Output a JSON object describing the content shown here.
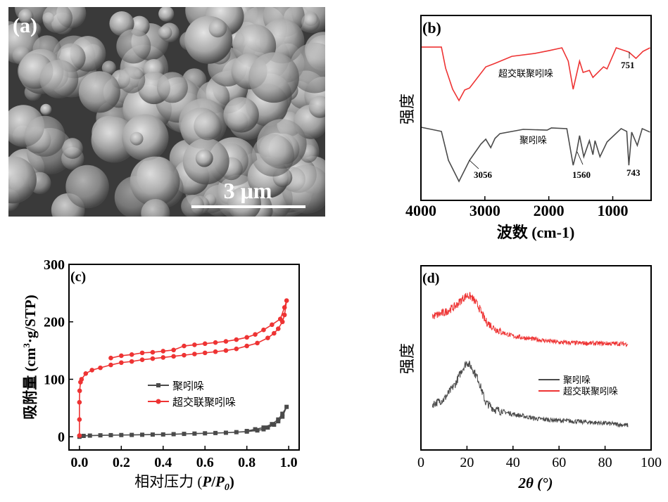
{
  "panel_a": {
    "label": "(a)",
    "scale_bar": "3 μm",
    "image": "SEM micrograph of aggregated spherical particles"
  },
  "chart_data": [
    {
      "panel": "(b)",
      "type": "line",
      "xlabel": "波数 (cm-1)",
      "xlabel_main": "波数 (cm",
      "xlabel_sup": "-1",
      "xlabel_end": ")",
      "ylabel": "强度",
      "xlim": [
        4000,
        400
      ],
      "ylim": [
        0,
        100
      ],
      "xticks": [
        4000,
        3000,
        2000,
        1000
      ],
      "grid": false,
      "series": [
        {
          "name": "超交联聚吲哚",
          "color": "#ee3333",
          "x": [
            3990,
            3680,
            3614,
            3504,
            3405,
            3316,
            3239,
            2986,
            2842,
            2578,
            2214,
            1993,
            1795,
            1696,
            1619,
            1519,
            1464,
            1365,
            1310,
            1144,
            1089,
            946,
            748,
            637,
            527,
            417
          ],
          "y": [
            82.9,
            82.9,
            71.5,
            60.1,
            54,
            59.7,
            60.8,
            72.2,
            74.1,
            77.9,
            79.5,
            81,
            82.5,
            75.3,
            60.1,
            75.3,
            69.2,
            70.3,
            66.5,
            72.2,
            71.1,
            82.5,
            80.2,
            76.8,
            80.6,
            82.5
          ]
        },
        {
          "name": "聚吲哚",
          "color": "#4a4a4a",
          "x": [
            3990,
            3680,
            3570,
            3405,
            3239,
            3063,
            2986,
            2908,
            2842,
            2765,
            2401,
            2026,
            1960,
            1718,
            1619,
            1563,
            1519,
            1453,
            1365,
            1310,
            1277,
            1200,
            1089,
            869,
            781,
            748,
            704,
            616,
            539,
            417
          ],
          "y": [
            39.5,
            37.3,
            21.7,
            10.3,
            21.7,
            30.4,
            33.1,
            28.5,
            33.5,
            36.1,
            38.4,
            38,
            39.2,
            38.8,
            19,
            26.6,
            35,
            23.6,
            32.3,
            24.7,
            32.3,
            23.6,
            31.6,
            38.8,
            37.3,
            19,
            36.9,
            29.7,
            38.8,
            36.9
          ]
        }
      ],
      "annotations": [
        "3056",
        "1560",
        "743",
        "751"
      ]
    },
    {
      "panel": "(c)",
      "type": "line",
      "xlabel_main": "相对压力 (",
      "xlabel_p": "P",
      "xlabel_slash": "/",
      "xlabel_p0": "P",
      "xlabel_sub": "0",
      "xlabel_end": ")",
      "xlabel": "相对压力 (P/P0)",
      "ylabel": "吸附量 (cm3·g/STP)",
      "ylabel_main": "吸附量 (cm",
      "ylabel_sup": "3",
      "ylabel_end": "·g/STP)",
      "xlim": [
        -0.05,
        1.05
      ],
      "ylim": [
        -23,
        300
      ],
      "xticks": [
        "0.0",
        "0.2",
        "0.4",
        "0.6",
        "0.8",
        "1.0"
      ],
      "yticks": [
        "0",
        "100",
        "200",
        "300"
      ],
      "legend": "center-right",
      "grid": false,
      "series": [
        {
          "name": "聚吲哚",
          "color": "#4a4a4a",
          "marker": "square",
          "x": [
            0,
            0.02,
            0.05,
            0.1,
            0.15,
            0.2,
            0.25,
            0.3,
            0.35,
            0.4,
            0.45,
            0.5,
            0.55,
            0.6,
            0.65,
            0.7,
            0.75,
            0.8,
            0.85,
            0.88,
            0.9,
            0.93,
            0.95,
            0.97,
            0.99,
            0.97,
            0.95,
            0.92,
            0.88,
            0.84,
            0.8
          ],
          "y": [
            0,
            1.5,
            2,
            2.5,
            2.8,
            3,
            3.2,
            3.5,
            3.8,
            4,
            4.5,
            5,
            5.5,
            6,
            6.5,
            7,
            8,
            9,
            11,
            13,
            16,
            21,
            27,
            35,
            52,
            40,
            30,
            22,
            16,
            13,
            10
          ]
        },
        {
          "name": "超交联聚吲哚",
          "color": "#ee3333",
          "marker": "circle",
          "x": [
            0,
            0,
            0,
            0.001,
            0.005,
            0.01,
            0.03,
            0.06,
            0.1,
            0.15,
            0.2,
            0.25,
            0.3,
            0.35,
            0.4,
            0.45,
            0.5,
            0.55,
            0.6,
            0.65,
            0.7,
            0.75,
            0.8,
            0.85,
            0.9,
            0.93,
            0.95,
            0.97,
            0.98,
            0.99,
            0.98,
            0.96,
            0.92,
            0.88,
            0.84,
            0.8,
            0.75,
            0.7,
            0.65,
            0.6,
            0.55,
            0.5,
            0.45,
            0.4,
            0.35,
            0.3,
            0.25,
            0.2,
            0.15
          ],
          "y": [
            2,
            30,
            60,
            80,
            95,
            100,
            110,
            116,
            120,
            125,
            129,
            131,
            134,
            136,
            138,
            140,
            142,
            144,
            146,
            148,
            150,
            153,
            158,
            163,
            172,
            180,
            188,
            200,
            212,
            237,
            225,
            205,
            195,
            186,
            178,
            173,
            169,
            166,
            164,
            162,
            160,
            158,
            151,
            149,
            147,
            146,
            143,
            141,
            137
          ]
        }
      ]
    },
    {
      "panel": "(d)",
      "type": "line",
      "xlabel": "2θ (°)",
      "xlabel_num": "2",
      "xlabel_theta": "θ",
      "xlabel_end": " (°)",
      "ylabel": "强度",
      "xlim": [
        0,
        100
      ],
      "ylim": [
        0,
        100
      ],
      "xticks": [
        "0",
        "20",
        "40",
        "60",
        "80",
        "100"
      ],
      "legend": "center-right",
      "grid": false,
      "series": [
        {
          "name": "聚吲哚",
          "color": "#4a4a4a",
          "x": [
            5,
            10,
            15,
            18,
            20,
            22,
            25,
            28,
            32,
            35,
            40,
            50,
            60,
            70,
            80,
            90
          ],
          "y": [
            24.8,
            27.5,
            36,
            44,
            47.7,
            45,
            38,
            26,
            22,
            21,
            19.5,
            17,
            16,
            15.3,
            14.5,
            13.4
          ]
        },
        {
          "name": "超交联聚吲哚",
          "color": "#ee3333",
          "x": [
            5,
            10,
            15,
            18,
            20,
            22,
            25,
            28,
            32,
            35,
            40,
            50,
            60,
            70,
            80,
            90
          ],
          "y": [
            72.5,
            74.5,
            78,
            82,
            84,
            83,
            78,
            70,
            66,
            64,
            61.8,
            60,
            58.4,
            58,
            57.8,
            57.6
          ]
        }
      ]
    }
  ]
}
